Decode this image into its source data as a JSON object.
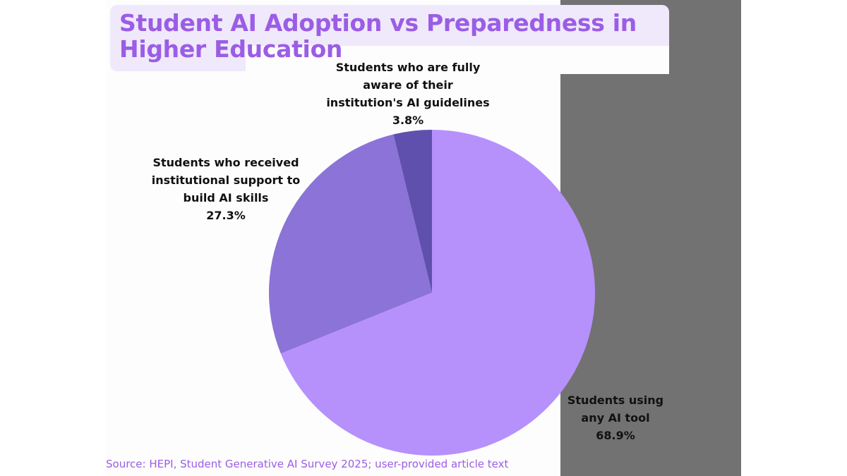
{
  "title": "Student AI Adoption vs Preparedness in Higher Education",
  "source": "Source: HEPI, Student Generative AI Survey 2025; user-provided article text",
  "colors": {
    "title": "#9b5de5",
    "slice_any_ai": "#b691fc",
    "slice_support": "#8b73d7",
    "slice_aware": "#6050ad",
    "dark_panel": "#727272"
  },
  "chart_data": {
    "type": "pie",
    "title": "Student AI Adoption vs Preparedness in Higher Education",
    "start_angle": "top",
    "direction": "clockwise",
    "slices": [
      {
        "label_lines": [
          "Students using",
          "any AI tool"
        ],
        "value": 68.9,
        "value_label": "68.9%",
        "color": "#b691fc"
      },
      {
        "label_lines": [
          "Students who received",
          "institutional support to",
          "build AI skills"
        ],
        "value": 27.3,
        "value_label": "27.3%",
        "color": "#8b73d7"
      },
      {
        "label_lines": [
          "Students who are fully",
          "aware of their",
          "institution's AI guidelines"
        ],
        "value": 3.8,
        "value_label": "3.8%",
        "color": "#6050ad"
      }
    ]
  }
}
